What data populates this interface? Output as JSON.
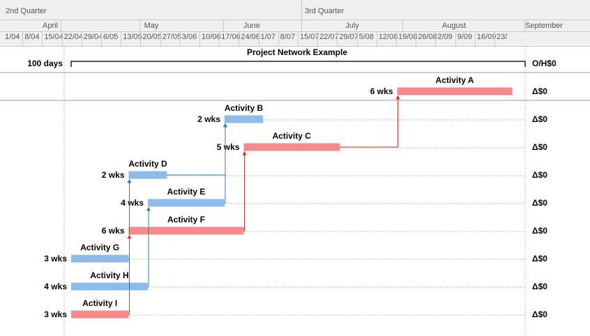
{
  "timescale": {
    "quarters": [
      "2nd Quarter",
      "3rd Quarter"
    ],
    "months": [
      "April",
      "May",
      "June",
      "July",
      "August",
      "September"
    ],
    "weeks": [
      "1/04",
      "8/04",
      "15/04",
      "22/04",
      "29/04",
      "6/05",
      "13/05",
      "20/05",
      "27/05",
      "3/06",
      "10/06",
      "17/06",
      "24/06",
      "1/07",
      "8/07",
      "15/07",
      "22/07",
      "29/07",
      "5/08",
      "12/08",
      "19/08",
      "26/08",
      "2/09",
      "9/09",
      "16/09",
      "23/"
    ]
  },
  "summary": {
    "title": "Project Network Example",
    "duration": "100 days",
    "right_label": "O/H$0"
  },
  "colors": {
    "critical": "#f48a8a",
    "normal": "#8fbbe8",
    "critical_link": "#d9342b",
    "normal_link": "#2f7fc4"
  },
  "activities": [
    {
      "id": "A",
      "name": "Activity A",
      "duration": "6 wks",
      "cost": "Δ$0",
      "critical": true,
      "start_week": 17,
      "length_weeks": 6
    },
    {
      "id": "B",
      "name": "Activity B",
      "duration": "2 wks",
      "cost": "Δ$0",
      "critical": false,
      "start_week": 8,
      "length_weeks": 2
    },
    {
      "id": "C",
      "name": "Activity C",
      "duration": "5 wks",
      "cost": "Δ$0",
      "critical": true,
      "start_week": 9,
      "length_weeks": 5
    },
    {
      "id": "D",
      "name": "Activity D",
      "duration": "2 wks",
      "cost": "Δ$0",
      "critical": false,
      "start_week": 3,
      "length_weeks": 2
    },
    {
      "id": "E",
      "name": "Activity E",
      "duration": "4 wks",
      "cost": "Δ$0",
      "critical": false,
      "start_week": 4,
      "length_weeks": 4
    },
    {
      "id": "F",
      "name": "Activity F",
      "duration": "6 wks",
      "cost": "Δ$0",
      "critical": true,
      "start_week": 3,
      "length_weeks": 6
    },
    {
      "id": "G",
      "name": "Activity G",
      "duration": "3 wks",
      "cost": "Δ$0",
      "critical": false,
      "start_week": 0,
      "length_weeks": 3
    },
    {
      "id": "H",
      "name": "Activity H",
      "duration": "4 wks",
      "cost": "Δ$0",
      "critical": false,
      "start_week": 0,
      "length_weeks": 4
    },
    {
      "id": "I",
      "name": "Activity I",
      "duration": "3 wks",
      "cost": "Δ$0",
      "critical": true,
      "start_week": 0,
      "length_weeks": 3
    }
  ],
  "links": [
    {
      "from": "I",
      "to": "F"
    },
    {
      "from": "H",
      "to": "E"
    },
    {
      "from": "G",
      "to": "D"
    },
    {
      "from": "F",
      "to": "C"
    },
    {
      "from": "E",
      "to": "B"
    },
    {
      "from": "D",
      "to": "B"
    },
    {
      "from": "C",
      "to": "A"
    }
  ]
}
